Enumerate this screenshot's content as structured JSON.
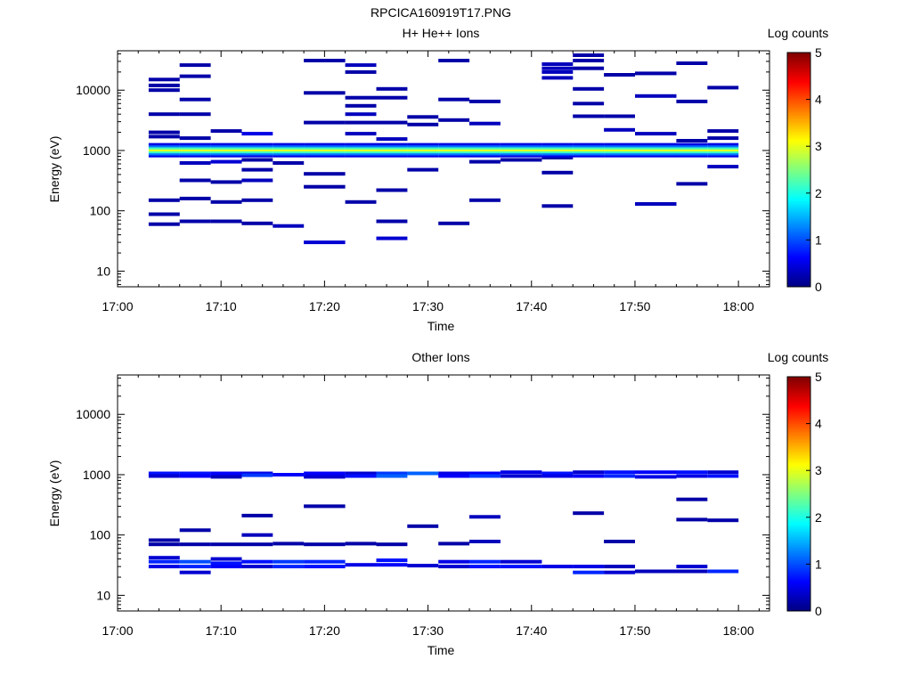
{
  "figure": {
    "title": "RPCICA160919T17.PNG"
  },
  "chart_data": [
    {
      "type": "heatmap",
      "title": "H+ He++ Ions",
      "xlabel": "Time",
      "ylabel": "Energy (eV)",
      "y_scale": "log",
      "ylim": [
        5.5,
        45000
      ],
      "xlim": [
        "17:00",
        "18:03"
      ],
      "x_ticks": [
        "17:00",
        "17:10",
        "17:20",
        "17:30",
        "17:40",
        "17:50",
        "18:00"
      ],
      "y_ticks": [
        10,
        100,
        1000,
        10000
      ],
      "y_tick_labels": [
        "10",
        "100",
        "1000",
        "10000"
      ],
      "colorbar": {
        "label": "Log counts",
        "range": [
          0,
          5
        ],
        "ticks": [
          "0",
          "1",
          "2",
          "3",
          "4",
          "5"
        ]
      },
      "time_bins": [
        [
          "17:03",
          "17:06"
        ],
        [
          "17:06",
          "17:09"
        ],
        [
          "17:09",
          "17:12"
        ],
        [
          "17:12",
          "17:15"
        ],
        [
          "17:15",
          "17:18"
        ],
        [
          "17:18",
          "17:22"
        ],
        [
          "17:22",
          "17:25"
        ],
        [
          "17:25",
          "17:28"
        ],
        [
          "17:28",
          "17:31"
        ],
        [
          "17:31",
          "17:34"
        ],
        [
          "17:34",
          "17:37"
        ],
        [
          "17:37",
          "17:41"
        ],
        [
          "17:41",
          "17:44"
        ],
        [
          "17:44",
          "17:47"
        ],
        [
          "17:47",
          "17:50"
        ],
        [
          "17:50",
          "17:54"
        ],
        [
          "17:54",
          "17:57"
        ],
        [
          "17:57",
          "18:00"
        ]
      ],
      "band": {
        "e_min": 780,
        "e_max": 1330,
        "levels": [
          0.5,
          1.2,
          2.2,
          3.0,
          2.2,
          1.2,
          0.5
        ]
      },
      "cells": [
        [
          0,
          60,
          0.2
        ],
        [
          0,
          88,
          0.2
        ],
        [
          0,
          150,
          0.2
        ],
        [
          0,
          1700,
          0.2
        ],
        [
          0,
          2000,
          0.2
        ],
        [
          0,
          4000,
          0.2
        ],
        [
          0,
          10000,
          0.2
        ],
        [
          0,
          12000,
          0.2
        ],
        [
          0,
          15000,
          0.2
        ],
        [
          1,
          67,
          0.2
        ],
        [
          1,
          160,
          0.2
        ],
        [
          1,
          320,
          0.2
        ],
        [
          1,
          620,
          0.3
        ],
        [
          1,
          1600,
          0.2
        ],
        [
          1,
          4000,
          0.2
        ],
        [
          1,
          7000,
          0.2
        ],
        [
          1,
          17000,
          0.2
        ],
        [
          1,
          26000,
          0.2
        ],
        [
          2,
          67,
          0.2
        ],
        [
          2,
          140,
          0.2
        ],
        [
          2,
          300,
          0.2
        ],
        [
          2,
          650,
          0.4
        ],
        [
          2,
          2100,
          0.2
        ],
        [
          3,
          62,
          0.2
        ],
        [
          3,
          150,
          0.2
        ],
        [
          3,
          320,
          0.3
        ],
        [
          3,
          480,
          0.2
        ],
        [
          3,
          700,
          0.2
        ],
        [
          3,
          1900,
          0.5
        ],
        [
          4,
          56,
          0.3
        ],
        [
          4,
          620,
          0.2
        ],
        [
          5,
          30,
          0.4
        ],
        [
          5,
          250,
          0.2
        ],
        [
          5,
          410,
          0.2
        ],
        [
          5,
          2900,
          0.2
        ],
        [
          5,
          9000,
          0.2
        ],
        [
          5,
          31000,
          0.2
        ],
        [
          6,
          140,
          0.2
        ],
        [
          6,
          1900,
          0.3
        ],
        [
          6,
          2900,
          0.2
        ],
        [
          6,
          4000,
          0.3
        ],
        [
          6,
          5500,
          0.2
        ],
        [
          6,
          7500,
          0.2
        ],
        [
          6,
          20000,
          0.2
        ],
        [
          6,
          26000,
          0.3
        ],
        [
          7,
          35,
          0.4
        ],
        [
          7,
          67,
          0.2
        ],
        [
          7,
          220,
          0.2
        ],
        [
          7,
          1550,
          0.3
        ],
        [
          7,
          2900,
          0.2
        ],
        [
          7,
          7500,
          0.2
        ],
        [
          7,
          10500,
          0.2
        ],
        [
          8,
          480,
          0.2
        ],
        [
          8,
          2700,
          0.2
        ],
        [
          8,
          3600,
          0.2
        ],
        [
          9,
          62,
          0.2
        ],
        [
          9,
          3200,
          0.2
        ],
        [
          9,
          7000,
          0.2
        ],
        [
          9,
          31000,
          0.2
        ],
        [
          10,
          150,
          0.2
        ],
        [
          10,
          650,
          0.2
        ],
        [
          10,
          2800,
          0.3
        ],
        [
          10,
          6500,
          0.2
        ],
        [
          11,
          700,
          0.2
        ],
        [
          12,
          120,
          0.2
        ],
        [
          12,
          430,
          0.2
        ],
        [
          12,
          760,
          0.2
        ],
        [
          12,
          16000,
          0.3
        ],
        [
          12,
          20000,
          0.3
        ],
        [
          12,
          23000,
          0.3
        ],
        [
          12,
          27000,
          0.3
        ],
        [
          13,
          3700,
          0.2
        ],
        [
          13,
          6000,
          0.2
        ],
        [
          13,
          10500,
          0.2
        ],
        [
          13,
          23000,
          0.2
        ],
        [
          13,
          31000,
          0.2
        ],
        [
          13,
          38000,
          0.2
        ],
        [
          14,
          2200,
          0.3
        ],
        [
          14,
          3700,
          0.2
        ],
        [
          14,
          18000,
          0.2
        ],
        [
          15,
          130,
          0.3
        ],
        [
          15,
          1900,
          0.3
        ],
        [
          15,
          8000,
          0.3
        ],
        [
          15,
          19000,
          0.2
        ],
        [
          16,
          280,
          0.2
        ],
        [
          16,
          1450,
          0.2
        ],
        [
          16,
          6500,
          0.2
        ],
        [
          16,
          28000,
          0.2
        ],
        [
          17,
          540,
          0.3
        ],
        [
          17,
          1600,
          0.2
        ],
        [
          17,
          2100,
          0.2
        ],
        [
          17,
          11000,
          0.2
        ]
      ]
    },
    {
      "type": "heatmap",
      "title": "Other Ions",
      "xlabel": "Time",
      "ylabel": "Energy (eV)",
      "y_scale": "log",
      "ylim": [
        5.5,
        45000
      ],
      "xlim": [
        "17:00",
        "18:03"
      ],
      "x_ticks": [
        "17:00",
        "17:10",
        "17:20",
        "17:30",
        "17:40",
        "17:50",
        "18:00"
      ],
      "y_ticks": [
        10,
        100,
        1000,
        10000
      ],
      "y_tick_labels": [
        "10",
        "100",
        "1000",
        "10000"
      ],
      "colorbar": {
        "label": "Log counts",
        "range": [
          0,
          5
        ],
        "ticks": [
          "0",
          "1",
          "2",
          "3",
          "4",
          "5"
        ]
      },
      "time_bins": [
        [
          "17:03",
          "17:06"
        ],
        [
          "17:06",
          "17:09"
        ],
        [
          "17:09",
          "17:12"
        ],
        [
          "17:12",
          "17:15"
        ],
        [
          "17:15",
          "17:18"
        ],
        [
          "17:18",
          "17:22"
        ],
        [
          "17:22",
          "17:25"
        ],
        [
          "17:25",
          "17:28"
        ],
        [
          "17:28",
          "17:31"
        ],
        [
          "17:31",
          "17:34"
        ],
        [
          "17:34",
          "17:37"
        ],
        [
          "17:37",
          "17:41"
        ],
        [
          "17:41",
          "17:44"
        ],
        [
          "17:44",
          "17:47"
        ],
        [
          "17:47",
          "17:50"
        ],
        [
          "17:50",
          "17:54"
        ],
        [
          "17:54",
          "17:57"
        ],
        [
          "17:57",
          "18:00"
        ]
      ],
      "cells": [
        [
          0,
          1050,
          0.7
        ],
        [
          0,
          950,
          0.4
        ],
        [
          0,
          82,
          0.2
        ],
        [
          0,
          70,
          0.2
        ],
        [
          0,
          42,
          0.4
        ],
        [
          0,
          36,
          0.8
        ],
        [
          0,
          30,
          0.5
        ],
        [
          1,
          1050,
          0.7
        ],
        [
          1,
          950,
          0.6
        ],
        [
          1,
          120,
          0.2
        ],
        [
          1,
          70,
          0.2
        ],
        [
          1,
          36,
          1.0
        ],
        [
          1,
          30,
          0.8
        ],
        [
          1,
          24,
          0.4
        ],
        [
          2,
          1050,
          0.6
        ],
        [
          2,
          920,
          0.3
        ],
        [
          2,
          70,
          0.2
        ],
        [
          2,
          40,
          0.4
        ],
        [
          2,
          34,
          0.7
        ],
        [
          2,
          30,
          0.6
        ],
        [
          3,
          1050,
          0.5
        ],
        [
          3,
          980,
          0.9
        ],
        [
          3,
          210,
          0.2
        ],
        [
          3,
          100,
          0.3
        ],
        [
          3,
          70,
          0.2
        ],
        [
          3,
          36,
          0.7
        ],
        [
          3,
          30,
          0.4
        ],
        [
          4,
          1000,
          0.6
        ],
        [
          4,
          72,
          0.2
        ],
        [
          4,
          36,
          0.9
        ],
        [
          4,
          30,
          0.8
        ],
        [
          5,
          1050,
          0.6
        ],
        [
          5,
          920,
          0.4
        ],
        [
          5,
          300,
          0.2
        ],
        [
          5,
          70,
          0.2
        ],
        [
          5,
          36,
          0.8
        ],
        [
          5,
          30,
          0.7
        ],
        [
          6,
          1050,
          0.4
        ],
        [
          6,
          950,
          0.7
        ],
        [
          6,
          72,
          0.2
        ],
        [
          6,
          32,
          0.5
        ],
        [
          7,
          1050,
          0.9
        ],
        [
          7,
          950,
          1.1
        ],
        [
          7,
          70,
          0.2
        ],
        [
          7,
          38,
          0.7
        ],
        [
          7,
          32,
          0.6
        ],
        [
          8,
          1050,
          1.1
        ],
        [
          8,
          140,
          0.2
        ],
        [
          8,
          31,
          0.4
        ],
        [
          9,
          1050,
          0.5
        ],
        [
          9,
          950,
          0.6
        ],
        [
          9,
          72,
          0.2
        ],
        [
          9,
          36,
          0.5
        ],
        [
          9,
          30,
          0.4
        ],
        [
          10,
          1050,
          0.6
        ],
        [
          10,
          950,
          0.9
        ],
        [
          10,
          200,
          0.3
        ],
        [
          10,
          78,
          0.3
        ],
        [
          10,
          36,
          0.8
        ],
        [
          10,
          30,
          0.7
        ],
        [
          11,
          1100,
          0.5
        ],
        [
          11,
          950,
          0.4
        ],
        [
          11,
          36,
          0.4
        ],
        [
          11,
          30,
          0.7
        ],
        [
          12,
          1050,
          0.7
        ],
        [
          12,
          950,
          0.5
        ],
        [
          12,
          30,
          0.5
        ],
        [
          13,
          1100,
          0.4
        ],
        [
          13,
          950,
          0.6
        ],
        [
          13,
          230,
          0.2
        ],
        [
          13,
          30,
          0.5
        ],
        [
          13,
          24,
          0.8
        ],
        [
          14,
          1100,
          0.7
        ],
        [
          14,
          950,
          0.8
        ],
        [
          14,
          78,
          0.2
        ],
        [
          14,
          30,
          0.3
        ],
        [
          14,
          24,
          0.4
        ],
        [
          15,
          1100,
          0.6
        ],
        [
          15,
          920,
          0.5
        ],
        [
          15,
          25,
          0.3
        ],
        [
          16,
          1100,
          0.7
        ],
        [
          16,
          950,
          0.5
        ],
        [
          16,
          390,
          0.2
        ],
        [
          16,
          180,
          0.2
        ],
        [
          16,
          30,
          0.4
        ],
        [
          16,
          25,
          0.3
        ],
        [
          17,
          1100,
          0.4
        ],
        [
          17,
          950,
          0.7
        ],
        [
          17,
          175,
          0.2
        ],
        [
          17,
          25,
          0.8
        ]
      ]
    }
  ]
}
